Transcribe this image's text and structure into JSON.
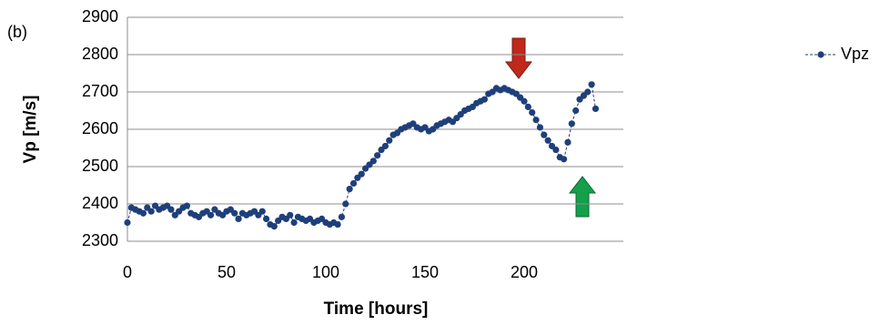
{
  "chart_data": {
    "type": "scatter",
    "annotation": "(b)",
    "xlabel": "Time [hours]",
    "ylabel": "Vp [m/s]",
    "xlim": [
      0,
      250
    ],
    "xticks": [
      0,
      50,
      100,
      150,
      200
    ],
    "ylim": [
      2300,
      2900
    ],
    "yticks": [
      2300,
      2400,
      2500,
      2600,
      2700,
      2800,
      2900
    ],
    "grid": true,
    "legend": "right",
    "series": [
      {
        "name": "Vpz",
        "color": "#1f3f7a",
        "x": [
          0,
          2,
          4,
          6,
          8,
          10,
          12,
          14,
          16,
          18,
          20,
          22,
          24,
          26,
          28,
          30,
          32,
          34,
          36,
          38,
          40,
          42,
          44,
          46,
          48,
          50,
          52,
          54,
          56,
          58,
          60,
          62,
          64,
          66,
          68,
          70,
          72,
          74,
          76,
          78,
          80,
          82,
          84,
          86,
          88,
          90,
          92,
          94,
          96,
          98,
          100,
          102,
          104,
          106,
          108,
          110,
          112,
          114,
          116,
          118,
          120,
          122,
          124,
          126,
          128,
          130,
          132,
          134,
          136,
          138,
          140,
          142,
          144,
          146,
          148,
          150,
          152,
          154,
          156,
          158,
          160,
          162,
          164,
          166,
          168,
          170,
          172,
          174,
          176,
          178,
          180,
          182,
          184,
          186,
          188,
          190,
          192,
          194,
          196,
          198,
          200,
          202,
          204,
          206,
          208,
          210,
          212,
          214,
          216,
          218,
          220,
          222,
          224,
          226,
          228,
          230,
          232,
          234,
          236
        ],
        "values": [
          2350,
          2390,
          2385,
          2380,
          2375,
          2390,
          2380,
          2395,
          2385,
          2390,
          2395,
          2385,
          2370,
          2380,
          2390,
          2395,
          2375,
          2370,
          2365,
          2375,
          2380,
          2370,
          2385,
          2375,
          2370,
          2380,
          2385,
          2375,
          2360,
          2375,
          2370,
          2375,
          2380,
          2370,
          2380,
          2360,
          2345,
          2340,
          2355,
          2365,
          2360,
          2370,
          2350,
          2365,
          2360,
          2355,
          2360,
          2350,
          2355,
          2360,
          2350,
          2345,
          2350,
          2345,
          2365,
          2400,
          2440,
          2455,
          2470,
          2480,
          2495,
          2505,
          2515,
          2530,
          2545,
          2555,
          2570,
          2585,
          2590,
          2600,
          2605,
          2610,
          2615,
          2605,
          2600,
          2605,
          2595,
          2600,
          2610,
          2615,
          2620,
          2625,
          2620,
          2630,
          2640,
          2650,
          2655,
          2660,
          2670,
          2675,
          2680,
          2695,
          2700,
          2710,
          2705,
          2710,
          2705,
          2700,
          2695,
          2685,
          2675,
          2660,
          2645,
          2625,
          2605,
          2585,
          2570,
          2555,
          2545,
          2525,
          2520,
          2565,
          2615,
          2650,
          2680,
          2690,
          2700,
          2720,
          2655
        ]
      }
    ]
  }
}
